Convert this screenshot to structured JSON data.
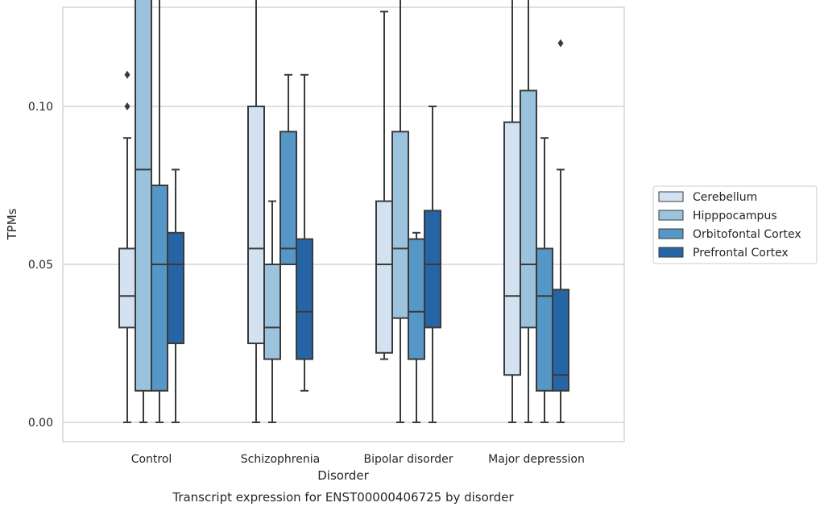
{
  "chart_data": {
    "type": "box",
    "title": "Transcript expression for ENST00000406725 by disorder",
    "xlabel": "Disorder",
    "ylabel": "TPMs",
    "ylim": [
      -0.012,
      0.263
    ],
    "yticks": [
      0.0,
      0.05,
      0.1,
      0.15,
      0.2,
      0.25
    ],
    "ytick_labels": [
      "0.00",
      "0.05",
      "0.10",
      "0.15",
      "0.20",
      "0.25"
    ],
    "grid": "horizontal",
    "legend_position": "right",
    "categories": [
      "Control",
      "Schizophrenia",
      "Bipolar disorder",
      "Major depression"
    ],
    "series": [
      {
        "name": "Cerebellum",
        "color": "#d2e2f1",
        "boxes": [
          {
            "whisker_low": 0.0,
            "q1": 0.03,
            "median": 0.04,
            "q3": 0.055,
            "whisker_high": 0.09,
            "outliers": [
              0.1,
              0.11
            ]
          },
          {
            "whisker_low": 0.0,
            "q1": 0.025,
            "median": 0.055,
            "q3": 0.1,
            "whisker_high": 0.14,
            "outliers": []
          },
          {
            "whisker_low": 0.02,
            "q1": 0.022,
            "median": 0.05,
            "q3": 0.07,
            "whisker_high": 0.13,
            "outliers": []
          },
          {
            "whisker_low": 0.0,
            "q1": 0.015,
            "median": 0.04,
            "q3": 0.095,
            "whisker_high": 0.17,
            "outliers": []
          }
        ]
      },
      {
        "name": "Hipppocampus",
        "color": "#9bc3dd",
        "boxes": [
          {
            "whisker_low": 0.0,
            "q1": 0.01,
            "median": 0.08,
            "q3": 0.135,
            "whisker_high": 0.19,
            "outliers": []
          },
          {
            "whisker_low": 0.0,
            "q1": 0.02,
            "median": 0.03,
            "q3": 0.05,
            "whisker_high": 0.07,
            "outliers": []
          },
          {
            "whisker_low": 0.0,
            "q1": 0.033,
            "median": 0.055,
            "q3": 0.092,
            "whisker_high": 0.16,
            "outliers": [
              0.23
            ]
          },
          {
            "whisker_low": 0.0,
            "q1": 0.03,
            "median": 0.05,
            "q3": 0.105,
            "whisker_high": 0.16,
            "outliers": []
          }
        ]
      },
      {
        "name": "Orbitofontal Cortex",
        "color": "#5597c6",
        "boxes": [
          {
            "whisker_low": 0.0,
            "q1": 0.01,
            "median": 0.05,
            "q3": 0.075,
            "whisker_high": 0.14,
            "outliers": []
          },
          {
            "whisker_low": 0.05,
            "q1": 0.05,
            "median": 0.055,
            "q3": 0.092,
            "whisker_high": 0.11,
            "outliers": [
              0.22,
              0.25
            ]
          },
          {
            "whisker_low": 0.0,
            "q1": 0.02,
            "median": 0.035,
            "q3": 0.058,
            "whisker_high": 0.06,
            "outliers": [
              0.16,
              0.19
            ]
          },
          {
            "whisker_low": 0.0,
            "q1": 0.01,
            "median": 0.04,
            "q3": 0.055,
            "whisker_high": 0.09,
            "outliers": []
          }
        ]
      },
      {
        "name": "Prefrontal Cortex",
        "color": "#2665a5",
        "boxes": [
          {
            "whisker_low": 0.0,
            "q1": 0.025,
            "median": 0.05,
            "q3": 0.06,
            "whisker_high": 0.08,
            "outliers": []
          },
          {
            "whisker_low": 0.01,
            "q1": 0.02,
            "median": 0.035,
            "q3": 0.058,
            "whisker_high": 0.11,
            "outliers": []
          },
          {
            "whisker_low": 0.0,
            "q1": 0.03,
            "median": 0.05,
            "q3": 0.067,
            "whisker_high": 0.1,
            "outliers": []
          },
          {
            "whisker_low": 0.0,
            "q1": 0.01,
            "median": 0.015,
            "q3": 0.042,
            "whisker_high": 0.08,
            "outliers": [
              0.12
            ]
          }
        ]
      }
    ]
  }
}
